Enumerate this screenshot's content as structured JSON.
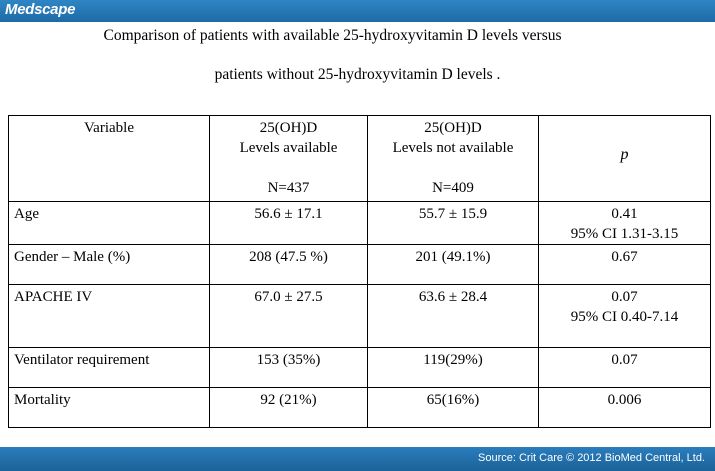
{
  "brand": "Medscape",
  "title": {
    "line1": "Comparison of patients with available 25-hydroxyvitamin D levels versus",
    "line2": "patients without 25-hydroxyvitamin D levels ."
  },
  "table": {
    "header": {
      "variable": "Variable",
      "available_l1": "25(OH)D",
      "available_l2": "Levels available",
      "available_n": "N=437",
      "not_available_l1": "25(OH)D",
      "not_available_l2": "Levels not available",
      "not_available_n": "N=409",
      "p": "p"
    },
    "rows": [
      {
        "variable": "Age",
        "available": "56.6 ± 17.1",
        "not_available": "55.7 ± 15.9",
        "p": "0.41",
        "p_ci": "95% CI 1.31-3.15"
      },
      {
        "variable": "Gender – Male (%)",
        "available": "208 (47.5 %)",
        "not_available": "201 (49.1%)",
        "p": "0.67",
        "p_ci": ""
      },
      {
        "variable": "APACHE IV",
        "available": "67.0 ± 27.5",
        "not_available": "63.6 ± 28.4",
        "p": "0.07",
        "p_ci": "95% CI 0.40-7.14"
      },
      {
        "variable": "Ventilator requirement",
        "available": "153 (35%)",
        "not_available": "119(29%)",
        "p": "0.07",
        "p_ci": ""
      },
      {
        "variable": "Mortality",
        "available": "92 (21%)",
        "not_available": "65(16%)",
        "p": "0.006",
        "p_ci": ""
      }
    ]
  },
  "footer": {
    "source": "Source: Crit Care © 2012 BioMed Central, Ltd."
  },
  "colors": {
    "bar_blue": "#1d6aa6"
  }
}
